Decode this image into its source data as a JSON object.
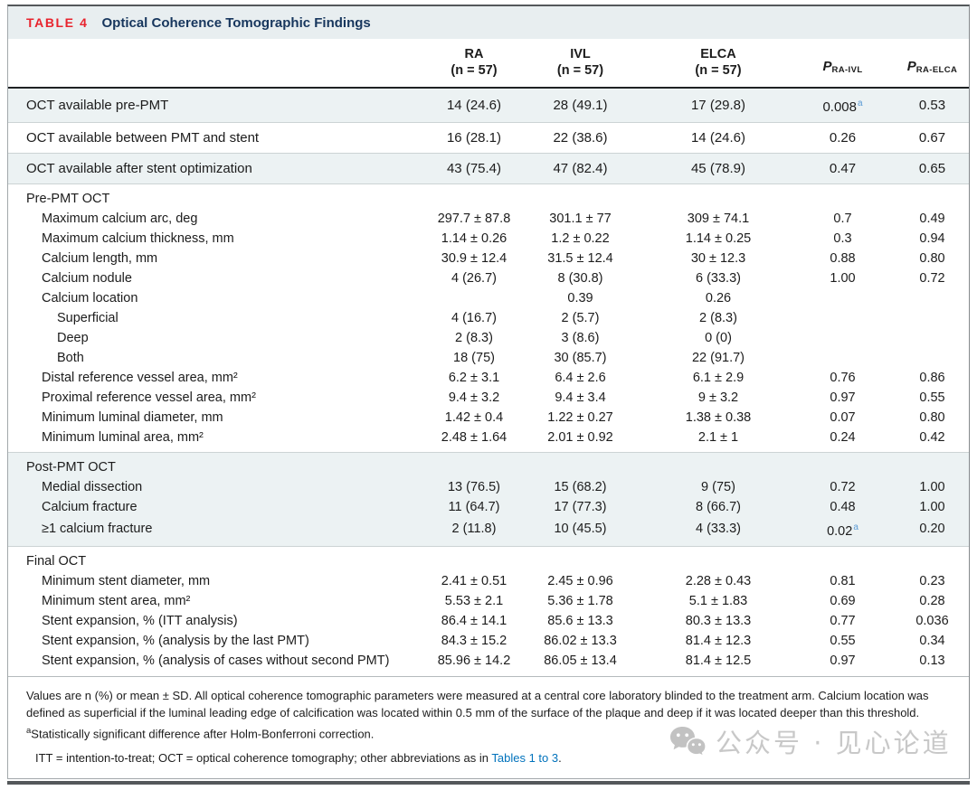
{
  "title": {
    "tag": "TABLE 4",
    "text": "Optical Coherence Tomographic Findings"
  },
  "header": {
    "ra": {
      "line1": "RA",
      "line2": "(n = 57)"
    },
    "ivl": {
      "line1": "IVL",
      "line2": "(n = 57)"
    },
    "elca": {
      "line1": "ELCA",
      "line2": "(n = 57)"
    },
    "p1": {
      "base": "P",
      "sub": "RA-IVL"
    },
    "p2": {
      "base": "P",
      "sub": "RA-ELCA"
    }
  },
  "rows": [
    {
      "label": "OCT available pre-PMT",
      "indent": 0,
      "shaded": true,
      "sep": true,
      "toprow": true,
      "ra": "14 (24.6)",
      "ivl": "28 (49.1)",
      "elca": "17 (29.8)",
      "p1": "0.008",
      "p1_sup": "a",
      "p2": "0.53"
    },
    {
      "label": "OCT available between PMT and stent",
      "indent": 0,
      "shaded": false,
      "sep": true,
      "toprow": true,
      "ra": "16 (28.1)",
      "ivl": "22 (38.6)",
      "elca": "14 (24.6)",
      "p1": "0.26",
      "p2": "0.67"
    },
    {
      "label": "OCT available after stent optimization",
      "indent": 0,
      "shaded": true,
      "sep": true,
      "toprow": true,
      "ra": "43 (75.4)",
      "ivl": "47 (82.4)",
      "elca": "45 (78.9)",
      "p1": "0.47",
      "p2": "0.65"
    },
    {
      "label": "Pre-PMT OCT",
      "indent": 0,
      "section": true,
      "shaded": false
    },
    {
      "label": "Maximum calcium arc, deg",
      "indent": 1,
      "ra": "297.7 ± 87.8",
      "ivl": "301.1 ± 77",
      "elca": "309 ± 74.1",
      "p1": "0.7",
      "p2": "0.49"
    },
    {
      "label": "Maximum calcium thickness, mm",
      "indent": 1,
      "ra": "1.14 ± 0.26",
      "ivl": "1.2 ± 0.22",
      "elca": "1.14 ± 0.25",
      "p1": "0.3",
      "p2": "0.94"
    },
    {
      "label": "Calcium length, mm",
      "indent": 1,
      "ra": "30.9 ± 12.4",
      "ivl": "31.5 ± 12.4",
      "elca": "30 ± 12.3",
      "p1": "0.88",
      "p2": "0.80"
    },
    {
      "label": "Calcium nodule",
      "indent": 1,
      "ra": "4 (26.7)",
      "ivl": "8 (30.8)",
      "elca": "6 (33.3)",
      "p1": "1.00",
      "p2": "0.72"
    },
    {
      "label": "Calcium location",
      "indent": 1,
      "ivl": "0.39",
      "elca": "0.26"
    },
    {
      "label": "Superficial",
      "indent": 2,
      "ra": "4 (16.7)",
      "ivl": "2 (5.7)",
      "elca": "2 (8.3)"
    },
    {
      "label": "Deep",
      "indent": 2,
      "ra": "2 (8.3)",
      "ivl": "3 (8.6)",
      "elca": "0 (0)"
    },
    {
      "label": "Both",
      "indent": 2,
      "ra": "18 (75)",
      "ivl": "30 (85.7)",
      "elca": "22 (91.7)"
    },
    {
      "label": "Distal reference vessel area, mm²",
      "indent": 1,
      "ra": "6.2 ± 3.1",
      "ivl": "6.4 ± 2.6",
      "elca": "6.1 ± 2.9",
      "p1": "0.76",
      "p2": "0.86"
    },
    {
      "label": "Proximal reference vessel area, mm²",
      "indent": 1,
      "ra": "9.4 ± 3.2",
      "ivl": "9.4 ± 3.4",
      "elca": "9 ± 3.2",
      "p1": "0.97",
      "p2": "0.55"
    },
    {
      "label": "Minimum luminal diameter, mm",
      "indent": 1,
      "ra": "1.42 ± 0.4",
      "ivl": "1.22 ± 0.27",
      "elca": "1.38 ± 0.38",
      "p1": "0.07",
      "p2": "0.80"
    },
    {
      "label": "Minimum luminal area, mm²",
      "indent": 1,
      "sep": true,
      "ra": "2.48 ± 1.64",
      "ivl": "2.01 ± 0.92",
      "elca": "2.1 ± 1",
      "p1": "0.24",
      "p2": "0.42"
    },
    {
      "label": "Post-PMT OCT",
      "indent": 0,
      "section": true,
      "shaded": true
    },
    {
      "label": "Medial dissection",
      "indent": 1,
      "shaded": true,
      "ra": "13 (76.5)",
      "ivl": "15 (68.2)",
      "elca": "9 (75)",
      "p1": "0.72",
      "p2": "1.00"
    },
    {
      "label": "Calcium fracture",
      "indent": 1,
      "shaded": true,
      "ra": "11 (64.7)",
      "ivl": "17 (77.3)",
      "elca": "8 (66.7)",
      "p1": "0.48",
      "p2": "1.00"
    },
    {
      "label": "≥1 calcium fracture",
      "indent": 1,
      "shaded": true,
      "sep": true,
      "ra": "2 (11.8)",
      "ivl": "10 (45.5)",
      "elca": "4 (33.3)",
      "p1": "0.02",
      "p1_sup": "a",
      "p2": "0.20"
    },
    {
      "label": "Final OCT",
      "indent": 0,
      "section": true,
      "shaded": false
    },
    {
      "label": "Minimum stent diameter, mm",
      "indent": 1,
      "ra": "2.41 ± 0.51",
      "ivl": "2.45 ± 0.96",
      "elca": "2.28 ± 0.43",
      "p1": "0.81",
      "p2": "0.23"
    },
    {
      "label": "Minimum stent area, mm²",
      "indent": 1,
      "ra": "5.53 ± 2.1",
      "ivl": "5.36 ± 1.78",
      "elca": "5.1 ± 1.83",
      "p1": "0.69",
      "p2": "0.28"
    },
    {
      "label": "Stent expansion, % (ITT analysis)",
      "indent": 1,
      "ra": "86.4 ± 14.1",
      "ivl": "85.6 ± 13.3",
      "elca": "80.3 ± 13.3",
      "p1": "0.77",
      "p2": "0.036"
    },
    {
      "label": "Stent expansion, % (analysis by the last PMT)",
      "indent": 1,
      "ra": "84.3 ± 15.2",
      "ivl": "86.02 ± 13.3",
      "elca": "81.4 ± 12.3",
      "p1": "0.55",
      "p2": "0.34"
    },
    {
      "label": "Stent expansion, % (analysis of cases without second PMT)",
      "indent": 1,
      "lastrow": true,
      "ra": "85.96 ± 14.2",
      "ivl": "86.05 ± 13.4",
      "elca": "81.4 ± 12.5",
      "p1": "0.97",
      "p2": "0.13"
    }
  ],
  "footnotes": {
    "para1": "Values are n (%) or mean ± SD. All optical coherence tomographic parameters were measured at a central core laboratory blinded to the treatment arm. Calcium location was defined as superficial if the luminal leading edge of calcification was located within 0.5 mm of the surface of the plaque and deep if it was located deeper than this threshold.",
    "para2_sup": "a",
    "para2": "Statistically significant difference after Holm-Bonferroni correction.",
    "para3_pre": "ITT = intention-to-treat; OCT = optical coherence tomography; other abbreviations as in ",
    "para3_link": "Tables 1 to 3",
    "para3_post": "."
  },
  "watermark": {
    "text": "公众号 · 见心论道",
    "icon": "wechat-icon"
  },
  "colors": {
    "accent_red": "#e8232d",
    "title_navy": "#17365d",
    "title_bar_bg": "#e8eef0",
    "shaded_row_bg": "#ecf2f3",
    "significance_blue": "#5b9bd5",
    "link_blue": "#0072bc",
    "watermark_gray": "#c8c8c8"
  }
}
